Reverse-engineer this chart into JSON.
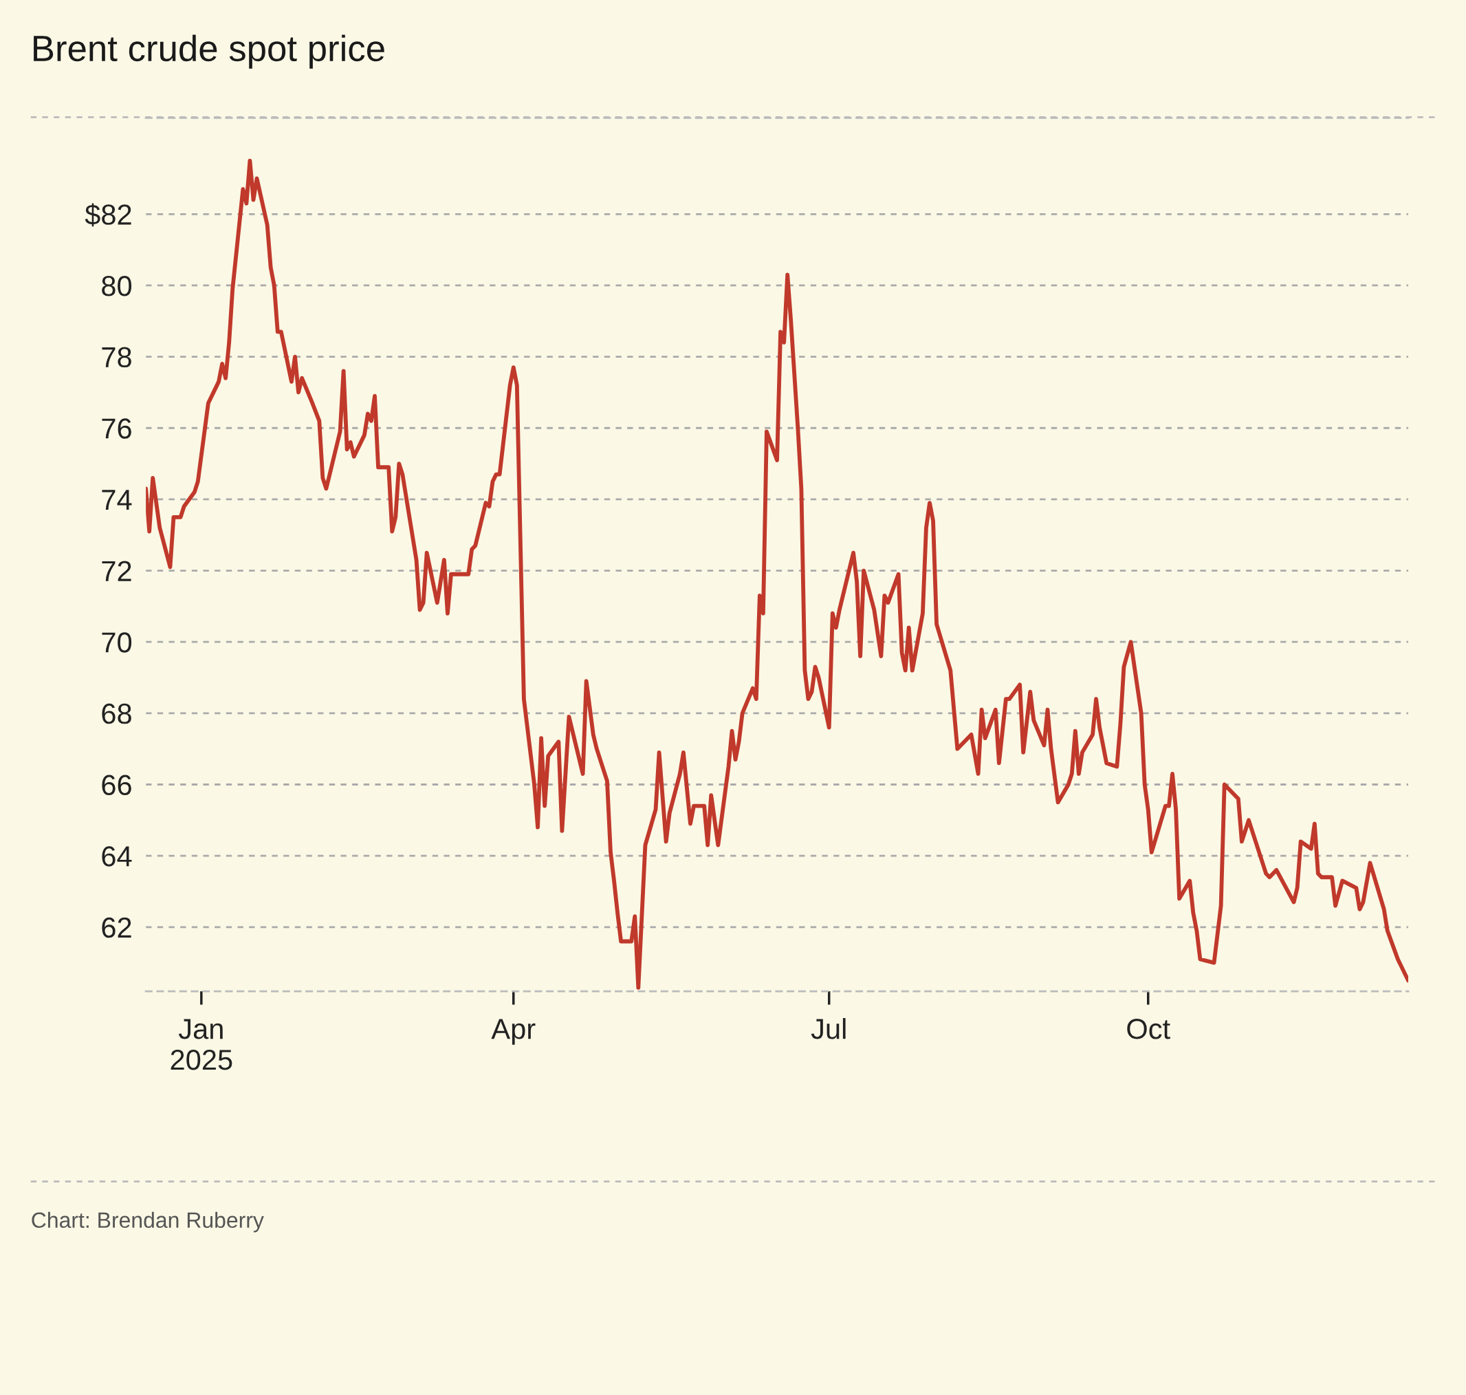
{
  "chart_data": {
    "type": "line",
    "title": "Brent crude spot price",
    "annotations": [
      "Chart: Brendan Ruberry"
    ],
    "x": [
      "2024-12-16",
      "2024-12-17",
      "2024-12-18",
      "2024-12-20",
      "2024-12-23",
      "2024-12-24",
      "2024-12-26",
      "2024-12-27",
      "2024-12-30",
      "2024-12-31",
      "2025-01-03",
      "2025-01-06",
      "2025-01-07",
      "2025-01-08",
      "2025-01-09",
      "2025-01-10",
      "2025-01-13",
      "2025-01-14",
      "2025-01-15",
      "2025-01-16",
      "2025-01-17",
      "2025-01-20",
      "2025-01-21",
      "2025-01-22",
      "2025-01-23",
      "2025-01-24",
      "2025-01-27",
      "2025-01-28",
      "2025-01-29",
      "2025-01-30",
      "2025-02-02",
      "2025-02-04",
      "2025-02-05",
      "2025-02-06",
      "2025-02-10",
      "2025-02-11",
      "2025-02-12",
      "2025-02-13",
      "2025-02-14",
      "2025-02-17",
      "2025-02-18",
      "2025-02-19",
      "2025-02-20",
      "2025-02-21",
      "2025-02-24",
      "2025-02-25",
      "2025-02-26",
      "2025-02-27",
      "2025-02-28",
      "2025-03-04",
      "2025-03-05",
      "2025-03-06",
      "2025-03-07",
      "2025-03-10",
      "2025-03-12",
      "2025-03-13",
      "2025-03-14",
      "2025-03-19",
      "2025-03-20",
      "2025-03-21",
      "2025-03-24",
      "2025-03-25",
      "2025-03-26",
      "2025-03-27",
      "2025-03-28",
      "2025-03-31",
      "2025-04-01",
      "2025-04-02",
      "2025-04-04",
      "2025-04-07",
      "2025-04-08",
      "2025-04-09",
      "2025-04-10",
      "2025-04-11",
      "2025-04-14",
      "2025-04-15",
      "2025-04-17",
      "2025-04-21",
      "2025-04-22",
      "2025-04-24",
      "2025-04-25",
      "2025-04-28",
      "2025-04-29",
      "2025-04-30",
      "2025-05-01",
      "2025-05-02",
      "2025-05-05",
      "2025-05-06",
      "2025-05-07",
      "2025-05-09",
      "2025-05-12",
      "2025-05-13",
      "2025-05-15",
      "2025-05-16",
      "2025-05-19",
      "2025-05-20",
      "2025-05-22",
      "2025-05-23",
      "2025-05-26",
      "2025-05-27",
      "2025-05-28",
      "2025-05-30",
      "2025-06-02",
      "2025-06-03",
      "2025-06-04",
      "2025-06-05",
      "2025-06-06",
      "2025-06-09",
      "2025-06-10",
      "2025-06-11",
      "2025-06-12",
      "2025-06-13",
      "2025-06-16",
      "2025-06-17",
      "2025-06-18",
      "2025-06-19",
      "2025-06-20",
      "2025-06-22",
      "2025-06-23",
      "2025-06-24",
      "2025-06-25",
      "2025-06-26",
      "2025-06-27",
      "2025-06-28",
      "2025-07-01",
      "2025-07-02",
      "2025-07-03",
      "2025-07-04",
      "2025-07-08",
      "2025-07-09",
      "2025-07-10",
      "2025-07-11",
      "2025-07-14",
      "2025-07-16",
      "2025-07-17",
      "2025-07-18",
      "2025-07-21",
      "2025-07-22",
      "2025-07-23",
      "2025-07-24",
      "2025-07-25",
      "2025-07-28",
      "2025-07-29",
      "2025-07-30",
      "2025-07-31",
      "2025-08-01",
      "2025-08-05",
      "2025-08-07",
      "2025-08-08",
      "2025-08-11",
      "2025-08-13",
      "2025-08-14",
      "2025-08-15",
      "2025-08-18",
      "2025-08-19",
      "2025-08-21",
      "2025-08-22",
      "2025-08-25",
      "2025-08-26",
      "2025-08-28",
      "2025-08-29",
      "2025-09-01",
      "2025-09-02",
      "2025-09-03",
      "2025-09-05",
      "2025-09-08",
      "2025-09-09",
      "2025-09-10",
      "2025-09-11",
      "2025-09-12",
      "2025-09-15",
      "2025-09-16",
      "2025-09-17",
      "2025-09-19",
      "2025-09-22",
      "2025-09-23",
      "2025-09-24",
      "2025-09-26",
      "2025-09-29",
      "2025-09-30",
      "2025-10-01",
      "2025-10-02",
      "2025-10-06",
      "2025-10-07",
      "2025-10-08",
      "2025-10-09",
      "2025-10-10",
      "2025-10-13",
      "2025-10-14",
      "2025-10-15",
      "2025-10-16",
      "2025-10-20",
      "2025-10-22",
      "2025-10-23",
      "2025-10-27",
      "2025-10-28",
      "2025-10-30",
      "2025-11-04",
      "2025-11-05",
      "2025-11-07",
      "2025-11-12",
      "2025-11-13",
      "2025-11-14",
      "2025-11-17",
      "2025-11-18",
      "2025-11-19",
      "2025-11-20",
      "2025-11-23",
      "2025-11-24",
      "2025-11-26",
      "2025-11-30",
      "2025-12-01",
      "2025-12-02",
      "2025-12-04",
      "2025-12-08",
      "2025-12-09",
      "2025-12-12",
      "2025-12-15"
    ],
    "series": [
      {
        "color": "#c0392b",
        "values": [
          74.3,
          73.1,
          74.6,
          73.2,
          72.1,
          73.5,
          73.5,
          73.8,
          74.2,
          74.5,
          76.7,
          77.3,
          77.8,
          77.4,
          78.4,
          79.9,
          82.7,
          82.3,
          83.5,
          82.4,
          83.0,
          81.7,
          80.5,
          80.0,
          78.7,
          78.7,
          77.3,
          78.0,
          77.0,
          77.4,
          76.7,
          76.2,
          74.6,
          74.3,
          75.9,
          77.6,
          75.4,
          75.6,
          75.2,
          75.8,
          76.4,
          76.2,
          76.9,
          74.9,
          74.9,
          73.1,
          73.5,
          75.0,
          74.7,
          72.3,
          70.9,
          71.1,
          72.5,
          71.1,
          72.3,
          70.8,
          71.9,
          71.9,
          72.6,
          72.7,
          73.9,
          73.8,
          74.5,
          74.7,
          74.7,
          77.2,
          77.7,
          77.2,
          68.4,
          66.0,
          64.8,
          67.3,
          65.4,
          66.8,
          67.2,
          64.7,
          67.9,
          66.3,
          68.9,
          67.4,
          67.0,
          66.1,
          64.1,
          63.3,
          62.4,
          61.6,
          61.6,
          62.3,
          60.3,
          64.3,
          65.3,
          66.9,
          64.4,
          65.2,
          66.3,
          66.9,
          64.9,
          65.4,
          65.4,
          64.3,
          65.7,
          64.3,
          66.5,
          67.5,
          66.7,
          67.2,
          68.0,
          68.7,
          68.4,
          71.3,
          70.8,
          75.9,
          75.1,
          78.7,
          78.4,
          80.3,
          79.0,
          76.0,
          74.3,
          69.2,
          68.4,
          68.6,
          69.3,
          69.0,
          67.6,
          70.8,
          70.4,
          70.9,
          72.5,
          71.7,
          69.6,
          72.0,
          70.9,
          69.6,
          71.3,
          71.1,
          71.9,
          69.7,
          69.2,
          70.4,
          69.2,
          70.8,
          73.2,
          73.9,
          73.4,
          70.5,
          69.2,
          67.0,
          67.1,
          67.4,
          66.3,
          68.1,
          67.3,
          68.1,
          66.6,
          68.4,
          68.4,
          68.8,
          66.9,
          68.6,
          67.8,
          67.1,
          68.1,
          67.0,
          65.5,
          66.0,
          66.3,
          67.5,
          66.3,
          66.9,
          67.4,
          68.4,
          67.6,
          66.6,
          66.5,
          67.7,
          69.3,
          70.0,
          68.0,
          66.0,
          65.3,
          64.1,
          65.4,
          65.4,
          66.3,
          65.3,
          62.8,
          63.3,
          62.4,
          61.9,
          61.1,
          61.0,
          62.6,
          66.0,
          65.6,
          64.4,
          65.0,
          63.5,
          63.4,
          63.6,
          62.7,
          63.1,
          64.4,
          64.2,
          64.9,
          63.5,
          63.4,
          63.4,
          62.6,
          63.3,
          63.1,
          62.5,
          62.7,
          63.8,
          62.5,
          61.9,
          61.1,
          60.5
        ]
      }
    ],
    "xlim": [
      "2024-12-16",
      "2025-12-15"
    ],
    "xticks": [
      {
        "value": "2025-01-01",
        "label": "Jan\n2025"
      },
      {
        "value": "2025-04-01",
        "label": "Apr"
      },
      {
        "value": "2025-07-01",
        "label": "Jul"
      },
      {
        "value": "2025-10-01",
        "label": "Oct"
      }
    ],
    "ylim": [
      60.2,
      84.7
    ],
    "yticks": [
      62,
      64,
      66,
      68,
      70,
      72,
      74,
      76,
      78,
      80,
      {
        "value": 82,
        "label": "$82"
      }
    ],
    "grid": "y",
    "legend": false,
    "line_style": "solid",
    "marker": "none"
  }
}
